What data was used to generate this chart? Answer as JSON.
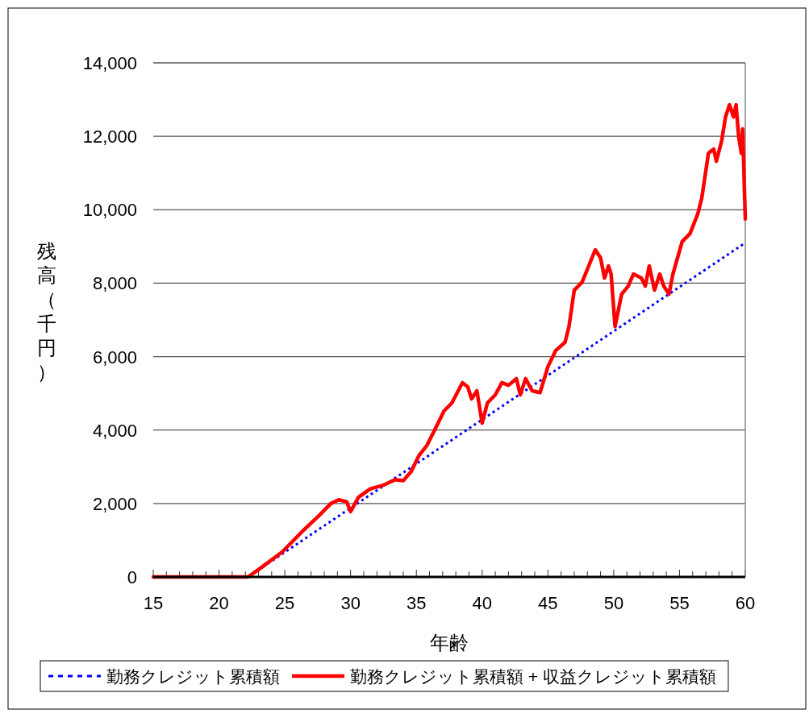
{
  "chart_data": {
    "type": "line",
    "xlabel": "年齢",
    "ylabel": "残高（千円）",
    "xlim": [
      15,
      60
    ],
    "ylim": [
      0,
      14000
    ],
    "xticks": [
      15,
      {
        "value": 16,
        "label": null
      },
      {
        "value": 17,
        "label": null
      },
      {
        "value": 18,
        "label": null
      },
      {
        "value": 19,
        "label": null
      },
      20,
      {
        "value": 21,
        "label": null
      },
      {
        "value": 22,
        "label": null
      },
      {
        "value": 23,
        "label": null
      },
      {
        "value": 24,
        "label": null
      },
      25,
      {
        "value": 26,
        "label": null
      },
      {
        "value": 27,
        "label": null
      },
      {
        "value": 28,
        "label": null
      },
      {
        "value": 29,
        "label": null
      },
      30,
      {
        "value": 31,
        "label": null
      },
      {
        "value": 32,
        "label": null
      },
      {
        "value": 33,
        "label": null
      },
      {
        "value": 34,
        "label": null
      },
      35,
      {
        "value": 36,
        "label": null
      },
      {
        "value": 37,
        "label": null
      },
      {
        "value": 38,
        "label": null
      },
      {
        "value": 39,
        "label": null
      },
      40,
      {
        "value": 41,
        "label": null
      },
      {
        "value": 42,
        "label": null
      },
      {
        "value": 43,
        "label": null
      },
      {
        "value": 44,
        "label": null
      },
      45,
      {
        "value": 46,
        "label": null
      },
      {
        "value": 47,
        "label": null
      },
      {
        "value": 48,
        "label": null
      },
      {
        "value": 49,
        "label": null
      },
      50,
      {
        "value": 51,
        "label": null
      },
      {
        "value": 52,
        "label": null
      },
      {
        "value": 53,
        "label": null
      },
      {
        "value": 54,
        "label": null
      },
      55,
      {
        "value": 56,
        "label": null
      },
      {
        "value": 57,
        "label": null
      },
      {
        "value": 58,
        "label": null
      },
      {
        "value": 59,
        "label": null
      },
      60
    ],
    "yticks": [
      0,
      {
        "value": 2000,
        "label": "2,000"
      },
      {
        "value": 4000,
        "label": "4,000"
      },
      {
        "value": 6000,
        "label": "6,000"
      },
      {
        "value": 8000,
        "label": "8,000"
      },
      {
        "value": 10000,
        "label": "10,000"
      },
      {
        "value": 12000,
        "label": "12,000"
      },
      {
        "value": 14000,
        "label": "14,000"
      }
    ],
    "grid": "y",
    "legend": "bottom",
    "marker": "none",
    "series": [
      {
        "name": "勤務クレジット累積額",
        "color": "#0000ff",
        "line_style": "dotted",
        "x": [
          15,
          22.2,
          60
        ],
        "values": [
          0,
          0,
          9100
        ]
      },
      {
        "name": "勤務クレジット累積額 + 収益クレジット累積額",
        "color": "#ff0000",
        "line_style": "solid",
        "x": [
          15,
          22.2,
          23,
          24.8,
          26.3,
          27.6,
          28.5,
          29.1,
          29.7,
          30,
          30.6,
          31.5,
          32.5,
          33.4,
          34,
          34.6,
          35.2,
          35.8,
          36.5,
          37.1,
          37.7,
          38.5,
          38.9,
          39.2,
          39.6,
          40,
          40.4,
          41,
          41.5,
          42,
          42.6,
          42.9,
          43.3,
          43.8,
          44.4,
          45,
          45.6,
          46.3,
          46.6,
          47,
          47.6,
          48.1,
          48.6,
          49,
          49.3,
          49.6,
          49.8,
          50.1,
          50.6,
          51.1,
          51.5,
          52.1,
          52.4,
          52.7,
          53.1,
          53.5,
          53.8,
          54.2,
          54.5,
          55.2,
          55.8,
          56.4,
          56.7,
          57.2,
          57.6,
          57.8,
          58.2,
          58.5,
          58.8,
          59.1,
          59.3,
          59.5,
          59.7,
          59.8,
          60
        ],
        "values": [
          0,
          0,
          200,
          680,
          1230,
          1670,
          2000,
          2100,
          2050,
          1780,
          2170,
          2400,
          2500,
          2650,
          2620,
          2870,
          3310,
          3580,
          4080,
          4520,
          4740,
          5290,
          5180,
          4850,
          5070,
          4190,
          4740,
          4960,
          5290,
          5220,
          5400,
          4960,
          5400,
          5070,
          5020,
          5730,
          6170,
          6390,
          6820,
          7810,
          8030,
          8470,
          8910,
          8690,
          8140,
          8470,
          8250,
          6820,
          7700,
          7920,
          8250,
          8140,
          7920,
          8470,
          7810,
          8250,
          7920,
          7700,
          8250,
          9130,
          9350,
          9900,
          10330,
          11540,
          11650,
          11320,
          11870,
          12530,
          12860,
          12530,
          12860,
          11980,
          11540,
          12200,
          9750
        ]
      }
    ]
  }
}
